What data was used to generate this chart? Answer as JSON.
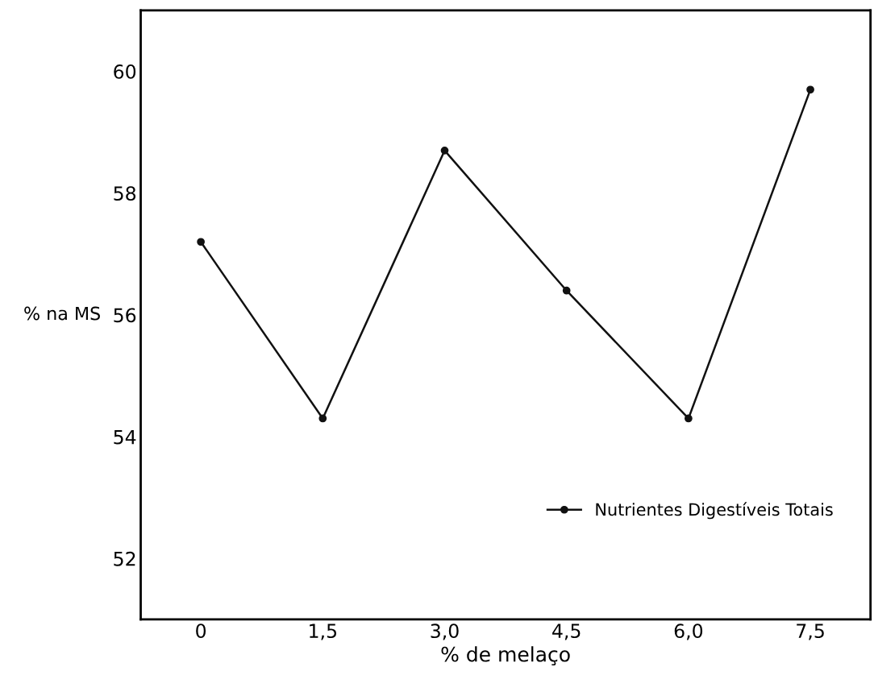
{
  "chart_data": {
    "type": "line",
    "xlabel": "% de melaço",
    "ylabel": "% na MS",
    "x": [
      0,
      1.5,
      3.0,
      4.5,
      6.0,
      7.5
    ],
    "series": [
      {
        "name": "Nutrientes Digestíveis Totais",
        "color": "#111111",
        "values": [
          57.2,
          54.3,
          58.7,
          56.4,
          54.3,
          59.7
        ]
      }
    ],
    "xlim": [
      -0.74,
      8.24
    ],
    "ylim": [
      51,
      61
    ],
    "xticks": [
      0,
      {
        "value": 1.5,
        "label": "1,5"
      },
      {
        "value": 3.0,
        "label": "3,0"
      },
      {
        "value": 4.5,
        "label": "4,5"
      },
      {
        "value": 6.0,
        "label": "6,0"
      },
      {
        "value": 7.5,
        "label": "7,5"
      }
    ],
    "yticks": [
      52,
      54,
      56,
      58,
      60
    ],
    "marker": "circle",
    "line_style": "solid",
    "grid": false,
    "legend": "bottom right"
  }
}
